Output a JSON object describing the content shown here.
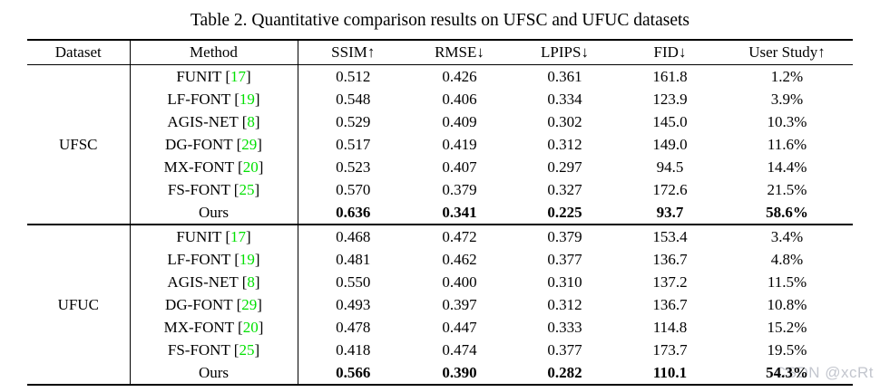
{
  "title": "Table 2. Quantitative comparison results on UFSC and UFUC datasets",
  "watermark": "CSDN @xcRt",
  "colors": {
    "citation_green": "#00e000",
    "watermark_gray": "#c3c6ce",
    "text": "#000000",
    "background": "#ffffff"
  },
  "table": {
    "columns": [
      "Dataset",
      "Method",
      "SSIM↑",
      "RMSE↓",
      "LPIPS↓",
      "FID↓",
      "User Study↑"
    ],
    "sections": [
      {
        "dataset": "UFSC",
        "rows": [
          {
            "method": "FUNIT",
            "cite": "17",
            "bold": false,
            "values": [
              "0.512",
              "0.426",
              "0.361",
              "161.8",
              "1.2%"
            ]
          },
          {
            "method": "LF-FONT",
            "cite": "19",
            "bold": false,
            "values": [
              "0.548",
              "0.406",
              "0.334",
              "123.9",
              "3.9%"
            ]
          },
          {
            "method": "AGIS-NET",
            "cite": "8",
            "bold": false,
            "values": [
              "0.529",
              "0.409",
              "0.302",
              "145.0",
              "10.3%"
            ]
          },
          {
            "method": "DG-FONT",
            "cite": "29",
            "bold": false,
            "values": [
              "0.517",
              "0.419",
              "0.312",
              "149.0",
              "11.6%"
            ]
          },
          {
            "method": "MX-FONT",
            "cite": "20",
            "bold": false,
            "values": [
              "0.523",
              "0.407",
              "0.297",
              "94.5",
              "14.4%"
            ]
          },
          {
            "method": "FS-FONT",
            "cite": "25",
            "bold": false,
            "values": [
              "0.570",
              "0.379",
              "0.327",
              "172.6",
              "21.5%"
            ]
          },
          {
            "method": "Ours",
            "cite": null,
            "bold": true,
            "values": [
              "0.636",
              "0.341",
              "0.225",
              "93.7",
              "58.6%"
            ]
          }
        ]
      },
      {
        "dataset": "UFUC",
        "rows": [
          {
            "method": "FUNIT",
            "cite": "17",
            "bold": false,
            "values": [
              "0.468",
              "0.472",
              "0.379",
              "153.4",
              "3.4%"
            ]
          },
          {
            "method": "LF-FONT",
            "cite": "19",
            "bold": false,
            "values": [
              "0.481",
              "0.462",
              "0.377",
              "136.7",
              "4.8%"
            ]
          },
          {
            "method": "AGIS-NET",
            "cite": "8",
            "bold": false,
            "values": [
              "0.550",
              "0.400",
              "0.310",
              "137.2",
              "11.5%"
            ]
          },
          {
            "method": "DG-FONT",
            "cite": "29",
            "bold": false,
            "values": [
              "0.493",
              "0.397",
              "0.312",
              "136.7",
              "10.8%"
            ]
          },
          {
            "method": "MX-FONT",
            "cite": "20",
            "bold": false,
            "values": [
              "0.478",
              "0.447",
              "0.333",
              "114.8",
              "15.2%"
            ]
          },
          {
            "method": "FS-FONT",
            "cite": "25",
            "bold": false,
            "values": [
              "0.418",
              "0.474",
              "0.377",
              "173.7",
              "19.5%"
            ]
          },
          {
            "method": "Ours",
            "cite": null,
            "bold": true,
            "values": [
              "0.566",
              "0.390",
              "0.282",
              "110.1",
              "54.3%"
            ]
          }
        ]
      }
    ]
  }
}
